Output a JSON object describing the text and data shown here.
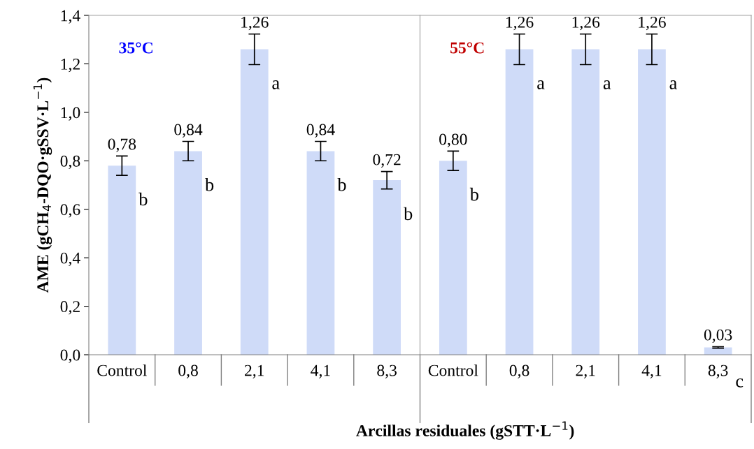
{
  "chart_data": [
    {
      "type": "bar",
      "ylabel": "AME (gCH$_{4}$-DQO·gSSV·L$^{−1}$)",
      "xlabel": "Arcillas residuales (gSTT·L$^{−1}$)",
      "categories": [
        "Control",
        "0,8",
        "2,1",
        "4,1",
        "8,3"
      ],
      "values": [
        0.78,
        0.84,
        1.26,
        0.84,
        0.72
      ],
      "color": "#cfdbf8",
      "errors": [
        0.04,
        0.04,
        0.063,
        0.04,
        0.036
      ],
      "value_labels": [
        "0,78",
        "0,84",
        "1,26",
        "0,84",
        "0,72"
      ],
      "ylim": [
        0,
        1.4
      ],
      "yticks": [
        {
          "value": 0,
          "label": "0,0"
        },
        {
          "value": 0.2,
          "label": "0,2"
        },
        {
          "value": 0.4,
          "label": "0,4"
        },
        {
          "value": 0.6,
          "label": "0,6"
        },
        {
          "value": 0.8,
          "label": "0,8"
        },
        {
          "value": 1.0,
          "label": "1,0"
        },
        {
          "value": 1.2,
          "label": "1,2"
        },
        {
          "value": 1.4,
          "label": "1,4"
        }
      ],
      "grid": false,
      "annotations": [
        "35°C",
        {
          "text": "b",
          "x": "Control",
          "y": 0.78
        },
        {
          "text": "b",
          "x": "0,8",
          "y": 0.84
        },
        {
          "text": "a",
          "x": "2,1",
          "y": 1.26
        },
        {
          "text": "b",
          "x": "4,1",
          "y": 0.84
        },
        {
          "text": "b",
          "x": "8,3",
          "y": 0.72
        }
      ]
    },
    {
      "type": "bar",
      "tick_labels": "x",
      "categories": [
        "Control",
        "0,8",
        "2,1",
        "4,1",
        "8,3"
      ],
      "values": [
        0.8,
        1.26,
        1.26,
        1.26,
        0.03
      ],
      "color": "#cfdbf8",
      "errors": [
        0.04,
        0.063,
        0.063,
        0.063,
        0.003
      ],
      "value_labels": [
        "0,80",
        "1,26",
        "1,26",
        "1,26",
        "0,03"
      ],
      "ylim": [
        0,
        1.4
      ],
      "grid": false,
      "annotations": [
        "55°C",
        {
          "text": "b",
          "x": "Control",
          "y": 0.8
        },
        {
          "text": "a",
          "x": "0,8",
          "y": 1.26
        },
        {
          "text": "a",
          "x": "2,1",
          "y": 1.26
        },
        {
          "text": "a",
          "x": "4,1",
          "y": 1.26
        },
        {
          "text": "c",
          "x": "8,3",
          "y": 0.03
        }
      ]
    }
  ]
}
